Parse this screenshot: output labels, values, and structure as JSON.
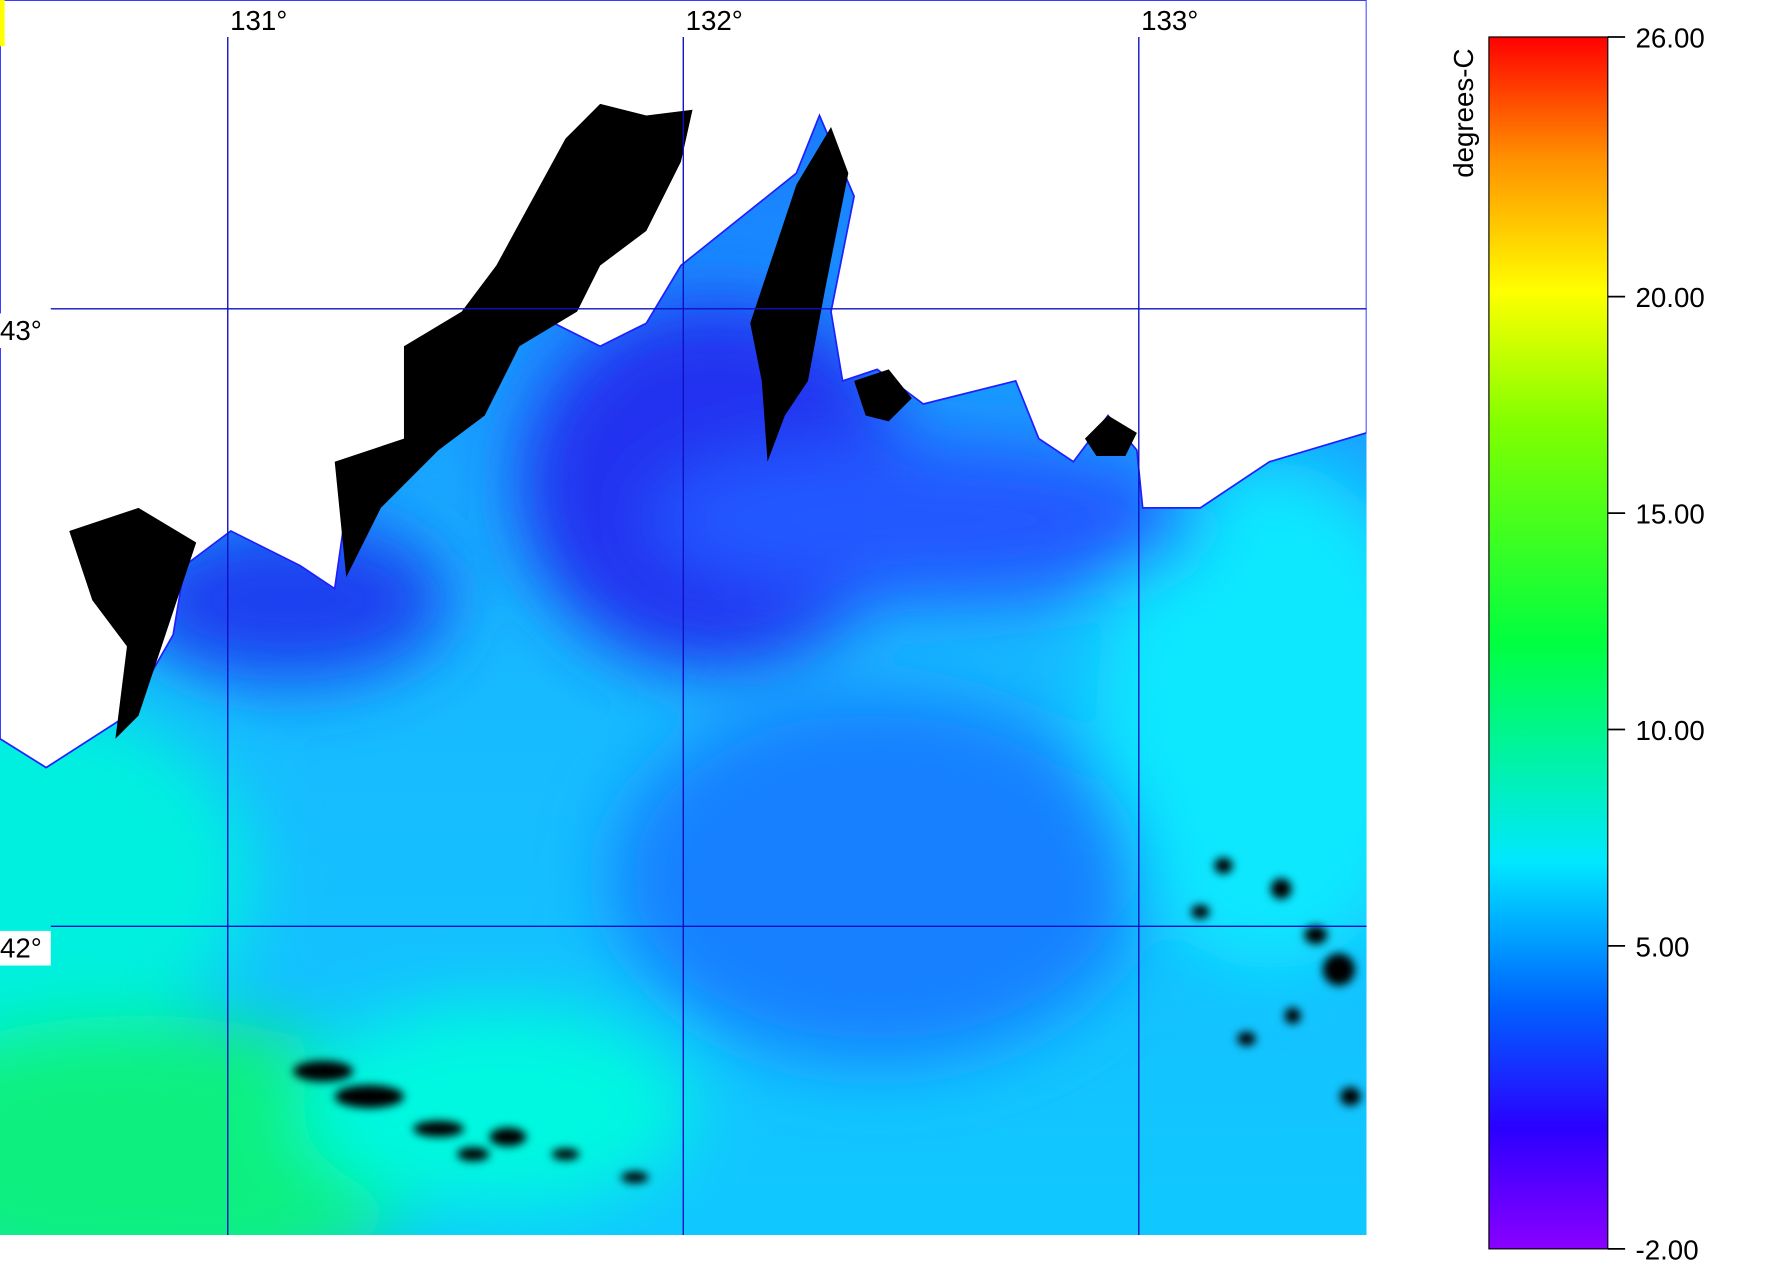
{
  "map": {
    "lon_range": [
      130.5,
      133.5
    ],
    "lat_range": [
      41.5,
      43.5
    ],
    "lon_ticks": [
      {
        "value": 131,
        "label": "131°"
      },
      {
        "value": 132,
        "label": "132°"
      },
      {
        "value": 133,
        "label": "133°"
      }
    ],
    "lat_ticks": [
      {
        "value": 43,
        "label": "43°"
      },
      {
        "value": 42,
        "label": "42°"
      }
    ],
    "colorbar": {
      "title": "degrees-C",
      "range": [
        -2,
        26
      ],
      "ticks": [
        {
          "value": 26,
          "label": "26.00"
        },
        {
          "value": 20,
          "label": "20.00"
        },
        {
          "value": 15,
          "label": "15.00"
        },
        {
          "value": 10,
          "label": "10.00"
        },
        {
          "value": 5,
          "label": "5.00"
        },
        {
          "value": -2,
          "label": "-2.00"
        }
      ]
    }
  }
}
